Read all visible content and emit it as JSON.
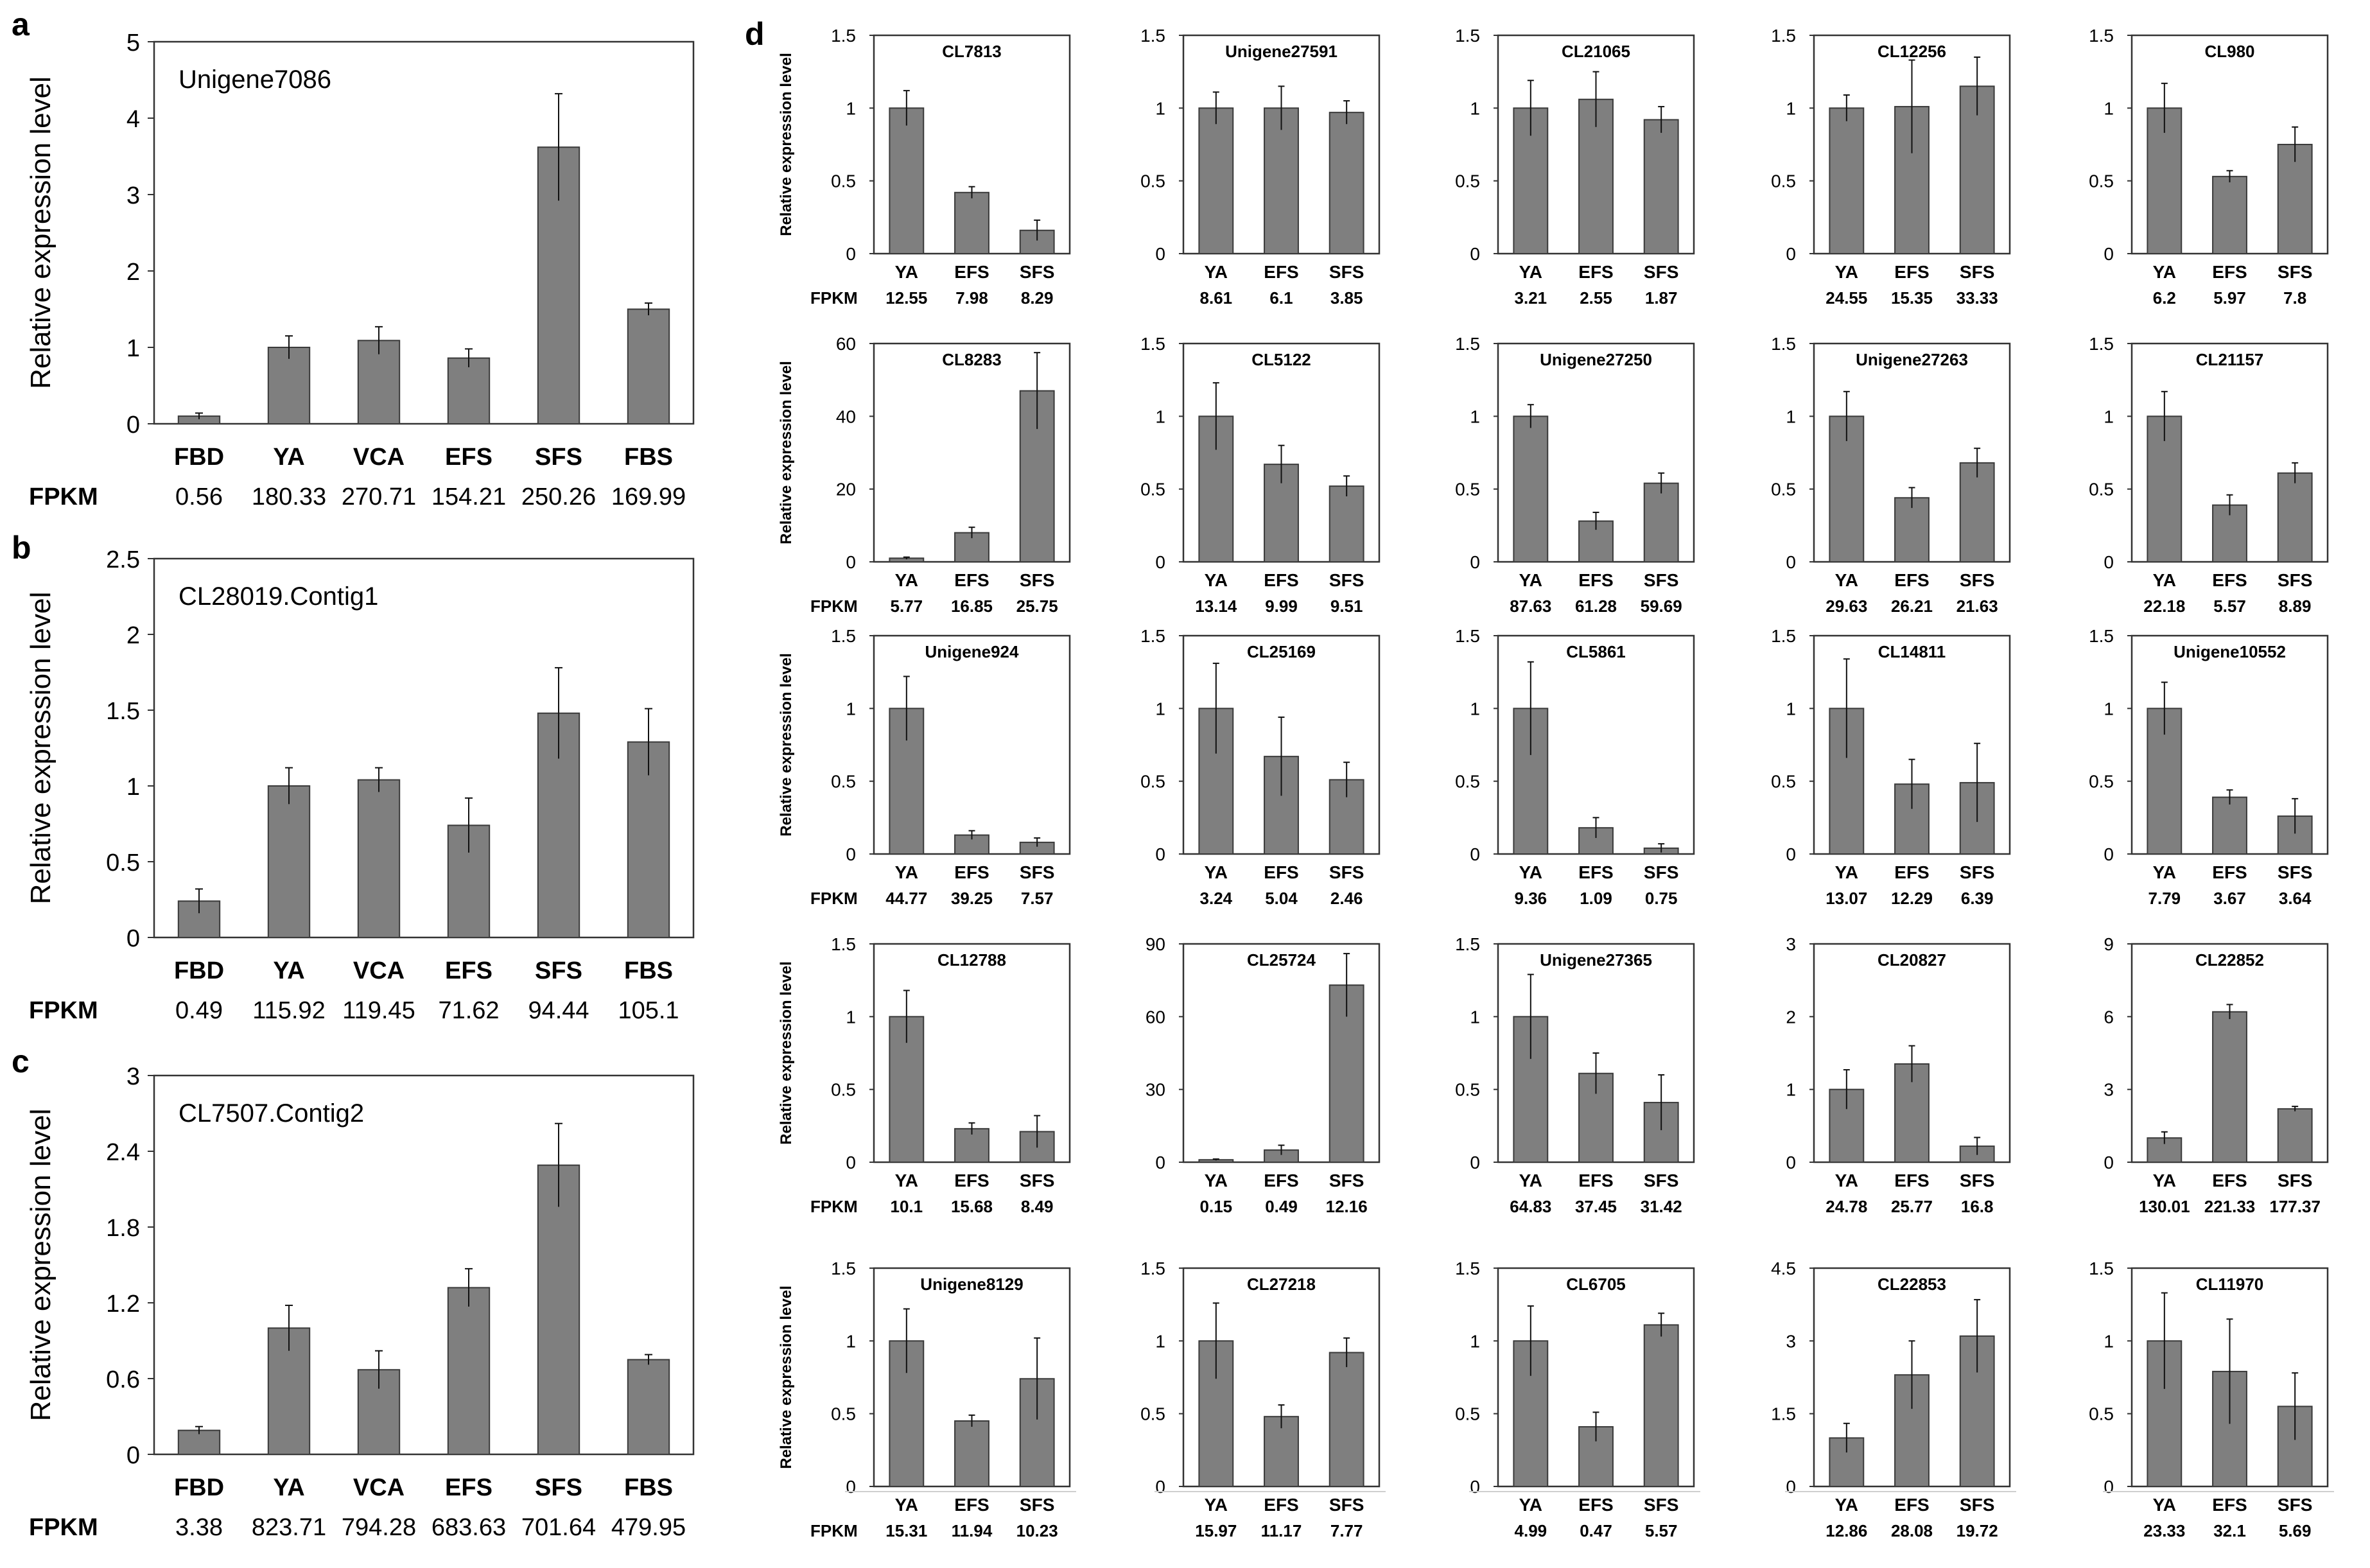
{
  "figure": {
    "panel_letters": [
      "a",
      "b",
      "c",
      "d"
    ],
    "fpkm_label": "FPKM",
    "ylabel": "Relative expression level"
  },
  "chart_data": [
    {
      "panel": "a",
      "type": "bar",
      "title": "Unigene7086",
      "ylabel": "Relative expression level",
      "categories": [
        "FBD",
        "YA",
        "VCA",
        "EFS",
        "SFS",
        "FBS"
      ],
      "values": [
        0.1,
        1.0,
        1.09,
        0.86,
        3.62,
        1.5
      ],
      "errors": [
        0.04,
        0.15,
        0.18,
        0.12,
        0.7,
        0.08
      ],
      "fpkm": [
        "0.56",
        "180.33",
        "270.71",
        "154.21",
        "250.26",
        "169.99"
      ],
      "ylim": [
        0,
        5
      ],
      "yticks": [
        "0",
        "1",
        "2",
        "3",
        "4",
        "5"
      ]
    },
    {
      "panel": "b",
      "type": "bar",
      "title": "CL28019.Contig1",
      "ylabel": "Relative expression level",
      "categories": [
        "FBD",
        "YA",
        "VCA",
        "EFS",
        "SFS",
        "FBS"
      ],
      "values": [
        0.24,
        1.0,
        1.04,
        0.74,
        1.48,
        1.29
      ],
      "errors": [
        0.08,
        0.12,
        0.08,
        0.18,
        0.3,
        0.22
      ],
      "fpkm": [
        "0.49",
        "115.92",
        "119.45",
        "71.62",
        "94.44",
        "105.1"
      ],
      "ylim": [
        0,
        2.5
      ],
      "yticks": [
        "0",
        "0.5",
        "1",
        "1.5",
        "2",
        "2.5"
      ]
    },
    {
      "panel": "c",
      "type": "bar",
      "title": "CL7507.Contig2",
      "ylabel": "Relative expression level",
      "categories": [
        "FBD",
        "YA",
        "VCA",
        "EFS",
        "SFS",
        "FBS"
      ],
      "values": [
        0.19,
        1.0,
        0.67,
        1.32,
        2.29,
        0.75
      ],
      "errors": [
        0.03,
        0.18,
        0.15,
        0.15,
        0.33,
        0.04
      ],
      "fpkm": [
        "3.38",
        "823.71",
        "794.28",
        "683.63",
        "701.64",
        "479.95"
      ],
      "ylim": [
        0,
        3
      ],
      "yticks": [
        "0",
        "0.6",
        "1.2",
        "1.8",
        "2.4",
        "3"
      ]
    },
    {
      "panel": "d",
      "type": "bar",
      "title": "CL7813",
      "categories": [
        "YA",
        "EFS",
        "SFS"
      ],
      "values": [
        1.0,
        0.42,
        0.16
      ],
      "errors": [
        0.12,
        0.04,
        0.07
      ],
      "fpkm": [
        "12.55",
        "7.98",
        "8.29"
      ],
      "ylim": [
        0,
        1.5
      ],
      "yticks": [
        "0",
        "0.5",
        "1",
        "1.5"
      ]
    },
    {
      "panel": "d",
      "type": "bar",
      "title": "Unigene27591",
      "categories": [
        "YA",
        "EFS",
        "SFS"
      ],
      "values": [
        1.0,
        1.0,
        0.97
      ],
      "errors": [
        0.11,
        0.15,
        0.08
      ],
      "fpkm": [
        "8.61",
        "6.1",
        "3.85"
      ],
      "ylim": [
        0,
        1.5
      ],
      "yticks": [
        "0",
        "0.5",
        "1",
        "1.5"
      ]
    },
    {
      "panel": "d",
      "type": "bar",
      "title": "CL21065",
      "categories": [
        "YA",
        "EFS",
        "SFS"
      ],
      "values": [
        1.0,
        1.06,
        0.92
      ],
      "errors": [
        0.19,
        0.19,
        0.09
      ],
      "fpkm": [
        "3.21",
        "2.55",
        "1.87"
      ],
      "ylim": [
        0,
        1.5
      ],
      "yticks": [
        "0",
        "0.5",
        "1",
        "1.5"
      ]
    },
    {
      "panel": "d",
      "type": "bar",
      "title": "CL12256",
      "categories": [
        "YA",
        "EFS",
        "SFS"
      ],
      "values": [
        1.0,
        1.01,
        1.15
      ],
      "errors": [
        0.09,
        0.32,
        0.2
      ],
      "fpkm": [
        "24.55",
        "15.35",
        "33.33"
      ],
      "ylim": [
        0,
        1.5
      ],
      "yticks": [
        "0",
        "0.5",
        "1",
        "1.5"
      ]
    },
    {
      "panel": "d",
      "type": "bar",
      "title": "CL980",
      "categories": [
        "YA",
        "EFS",
        "SFS"
      ],
      "values": [
        1.0,
        0.53,
        0.75
      ],
      "errors": [
        0.17,
        0.04,
        0.12
      ],
      "fpkm": [
        "6.2",
        "5.97",
        "7.8"
      ],
      "ylim": [
        0,
        1.5
      ],
      "yticks": [
        "0",
        "0.5",
        "1",
        "1.5"
      ]
    },
    {
      "panel": "d",
      "type": "bar",
      "title": "CL8283",
      "categories": [
        "YA",
        "EFS",
        "SFS"
      ],
      "values": [
        1.0,
        8.0,
        47.0
      ],
      "errors": [
        0.3,
        1.5,
        10.5
      ],
      "fpkm": [
        "5.77",
        "16.85",
        "25.75"
      ],
      "ylim": [
        0,
        60
      ],
      "yticks": [
        "0",
        "20",
        "40",
        "60"
      ]
    },
    {
      "panel": "d",
      "type": "bar",
      "title": "CL5122",
      "categories": [
        "YA",
        "EFS",
        "SFS"
      ],
      "values": [
        1.0,
        0.67,
        0.52
      ],
      "errors": [
        0.23,
        0.13,
        0.07
      ],
      "fpkm": [
        "13.14",
        "9.99",
        "9.51"
      ],
      "ylim": [
        0,
        1.5
      ],
      "yticks": [
        "0",
        "0.5",
        "1",
        "1.5"
      ]
    },
    {
      "panel": "d",
      "type": "bar",
      "title": "Unigene27250",
      "categories": [
        "YA",
        "EFS",
        "SFS"
      ],
      "values": [
        1.0,
        0.28,
        0.54
      ],
      "errors": [
        0.08,
        0.06,
        0.07
      ],
      "fpkm": [
        "87.63",
        "61.28",
        "59.69"
      ],
      "ylim": [
        0,
        1.5
      ],
      "yticks": [
        "0",
        "0.5",
        "1",
        "1.5"
      ]
    },
    {
      "panel": "d",
      "type": "bar",
      "title": "Unigene27263",
      "categories": [
        "YA",
        "EFS",
        "SFS"
      ],
      "values": [
        1.0,
        0.44,
        0.68
      ],
      "errors": [
        0.17,
        0.07,
        0.1
      ],
      "fpkm": [
        "29.63",
        "26.21",
        "21.63"
      ],
      "ylim": [
        0,
        1.5
      ],
      "yticks": [
        "0",
        "0.5",
        "1",
        "1.5"
      ]
    },
    {
      "panel": "d",
      "type": "bar",
      "title": "CL21157",
      "categories": [
        "YA",
        "EFS",
        "SFS"
      ],
      "values": [
        1.0,
        0.39,
        0.61
      ],
      "errors": [
        0.17,
        0.07,
        0.07
      ],
      "fpkm": [
        "22.18",
        "5.57",
        "8.89"
      ],
      "ylim": [
        0,
        1.5
      ],
      "yticks": [
        "0",
        "0.5",
        "1",
        "1.5"
      ]
    },
    {
      "panel": "d",
      "type": "bar",
      "title": "Unigene924",
      "categories": [
        "YA",
        "EFS",
        "SFS"
      ],
      "values": [
        1.0,
        0.13,
        0.08
      ],
      "errors": [
        0.22,
        0.03,
        0.03
      ],
      "fpkm": [
        "44.77",
        "39.25",
        "7.57"
      ],
      "ylim": [
        0,
        1.5
      ],
      "yticks": [
        "0",
        "0.5",
        "1",
        "1.5"
      ]
    },
    {
      "panel": "d",
      "type": "bar",
      "title": "CL25169",
      "categories": [
        "YA",
        "EFS",
        "SFS"
      ],
      "values": [
        1.0,
        0.67,
        0.51
      ],
      "errors": [
        0.31,
        0.27,
        0.12
      ],
      "fpkm": [
        "3.24",
        "5.04",
        "2.46"
      ],
      "ylim": [
        0,
        1.5
      ],
      "yticks": [
        "0",
        "0.5",
        "1",
        "1.5"
      ]
    },
    {
      "panel": "d",
      "type": "bar",
      "title": "CL5861",
      "categories": [
        "YA",
        "EFS",
        "SFS"
      ],
      "values": [
        1.0,
        0.18,
        0.04
      ],
      "errors": [
        0.32,
        0.07,
        0.03
      ],
      "fpkm": [
        "9.36",
        "1.09",
        "0.75"
      ],
      "ylim": [
        0,
        1.5
      ],
      "yticks": [
        "0",
        "0.5",
        "1",
        "1.5"
      ]
    },
    {
      "panel": "d",
      "type": "bar",
      "title": "CL14811",
      "categories": [
        "YA",
        "EFS",
        "SFS"
      ],
      "values": [
        1.0,
        0.48,
        0.49
      ],
      "errors": [
        0.34,
        0.17,
        0.27
      ],
      "fpkm": [
        "13.07",
        "12.29",
        "6.39"
      ],
      "ylim": [
        0,
        1.5
      ],
      "yticks": [
        "0",
        "0.5",
        "1",
        "1.5"
      ]
    },
    {
      "panel": "d",
      "type": "bar",
      "title": "Unigene10552",
      "categories": [
        "YA",
        "EFS",
        "SFS"
      ],
      "values": [
        1.0,
        0.39,
        0.26
      ],
      "errors": [
        0.18,
        0.05,
        0.12
      ],
      "fpkm": [
        "7.79",
        "3.67",
        "3.64"
      ],
      "ylim": [
        0,
        1.5
      ],
      "yticks": [
        "0",
        "0.5",
        "1",
        "1.5"
      ]
    },
    {
      "panel": "d",
      "type": "bar",
      "title": "CL12788",
      "categories": [
        "YA",
        "EFS",
        "SFS"
      ],
      "values": [
        1.0,
        0.23,
        0.21
      ],
      "errors": [
        0.18,
        0.04,
        0.11
      ],
      "fpkm": [
        "10.1",
        "15.68",
        "8.49"
      ],
      "ylim": [
        0,
        1.5
      ],
      "yticks": [
        "0",
        "0.5",
        "1",
        "1.5"
      ]
    },
    {
      "panel": "d",
      "type": "bar",
      "title": "CL25724",
      "categories": [
        "YA",
        "EFS",
        "SFS"
      ],
      "values": [
        1.0,
        5.0,
        73.0
      ],
      "errors": [
        0.3,
        2.0,
        13.0
      ],
      "fpkm": [
        "0.15",
        "0.49",
        "12.16"
      ],
      "ylim": [
        0,
        90
      ],
      "yticks": [
        "0",
        "30",
        "60",
        "90"
      ]
    },
    {
      "panel": "d",
      "type": "bar",
      "title": "Unigene27365",
      "categories": [
        "YA",
        "EFS",
        "SFS"
      ],
      "values": [
        1.0,
        0.61,
        0.41
      ],
      "errors": [
        0.29,
        0.14,
        0.19
      ],
      "fpkm": [
        "64.83",
        "37.45",
        "31.42"
      ],
      "ylim": [
        0,
        1.5
      ],
      "yticks": [
        "0",
        "0.5",
        "1",
        "1.5"
      ]
    },
    {
      "panel": "d",
      "type": "bar",
      "title": "CL20827",
      "categories": [
        "YA",
        "EFS",
        "SFS"
      ],
      "values": [
        1.0,
        1.35,
        0.22
      ],
      "errors": [
        0.27,
        0.25,
        0.12
      ],
      "fpkm": [
        "24.78",
        "25.77",
        "16.8"
      ],
      "ylim": [
        0,
        3
      ],
      "yticks": [
        "0",
        "1",
        "2",
        "3"
      ]
    },
    {
      "panel": "d",
      "type": "bar",
      "title": "CL22852",
      "categories": [
        "YA",
        "EFS",
        "SFS"
      ],
      "values": [
        1.0,
        6.2,
        2.2
      ],
      "errors": [
        0.25,
        0.3,
        0.1
      ],
      "fpkm": [
        "130.01",
        "221.33",
        "177.37"
      ],
      "ylim": [
        0,
        9
      ],
      "yticks": [
        "0",
        "3",
        "6",
        "9"
      ]
    },
    {
      "panel": "d",
      "type": "bar",
      "title": "Unigene8129",
      "categories": [
        "YA",
        "EFS",
        "SFS"
      ],
      "values": [
        1.0,
        0.45,
        0.74
      ],
      "errors": [
        0.22,
        0.04,
        0.28
      ],
      "fpkm": [
        "15.31",
        "11.94",
        "10.23"
      ],
      "ylim": [
        0,
        1.5
      ],
      "yticks": [
        "0",
        "0.5",
        "1",
        "1.5"
      ]
    },
    {
      "panel": "d",
      "type": "bar",
      "title": "CL27218",
      "categories": [
        "YA",
        "EFS",
        "SFS"
      ],
      "values": [
        1.0,
        0.48,
        0.92
      ],
      "errors": [
        0.26,
        0.08,
        0.1
      ],
      "fpkm": [
        "15.97",
        "11.17",
        "7.77"
      ],
      "ylim": [
        0,
        1.5
      ],
      "yticks": [
        "0",
        "0.5",
        "1",
        "1.5"
      ]
    },
    {
      "panel": "d",
      "type": "bar",
      "title": "CL6705",
      "categories": [
        "YA",
        "EFS",
        "SFS"
      ],
      "values": [
        1.0,
        0.41,
        1.11
      ],
      "errors": [
        0.24,
        0.1,
        0.08
      ],
      "fpkm": [
        "4.99",
        "0.47",
        "5.57"
      ],
      "ylim": [
        0,
        1.5
      ],
      "yticks": [
        "0",
        "0.5",
        "1",
        "1.5"
      ]
    },
    {
      "panel": "d",
      "type": "bar",
      "title": "CL22853",
      "categories": [
        "YA",
        "EFS",
        "SFS"
      ],
      "values": [
        1.0,
        2.3,
        3.1
      ],
      "errors": [
        0.3,
        0.7,
        0.75
      ],
      "fpkm": [
        "12.86",
        "28.08",
        "19.72"
      ],
      "ylim": [
        0,
        4.5
      ],
      "yticks": [
        "0",
        "1.5",
        "3",
        "4.5"
      ]
    },
    {
      "panel": "d",
      "type": "bar",
      "title": "CL11970",
      "categories": [
        "YA",
        "EFS",
        "SFS"
      ],
      "values": [
        1.0,
        0.79,
        0.55
      ],
      "errors": [
        0.33,
        0.36,
        0.23
      ],
      "fpkm": [
        "23.33",
        "32.1",
        "5.69"
      ],
      "ylim": [
        0,
        1.5
      ],
      "yticks": [
        "0",
        "0.5",
        "1",
        "1.5"
      ]
    }
  ]
}
